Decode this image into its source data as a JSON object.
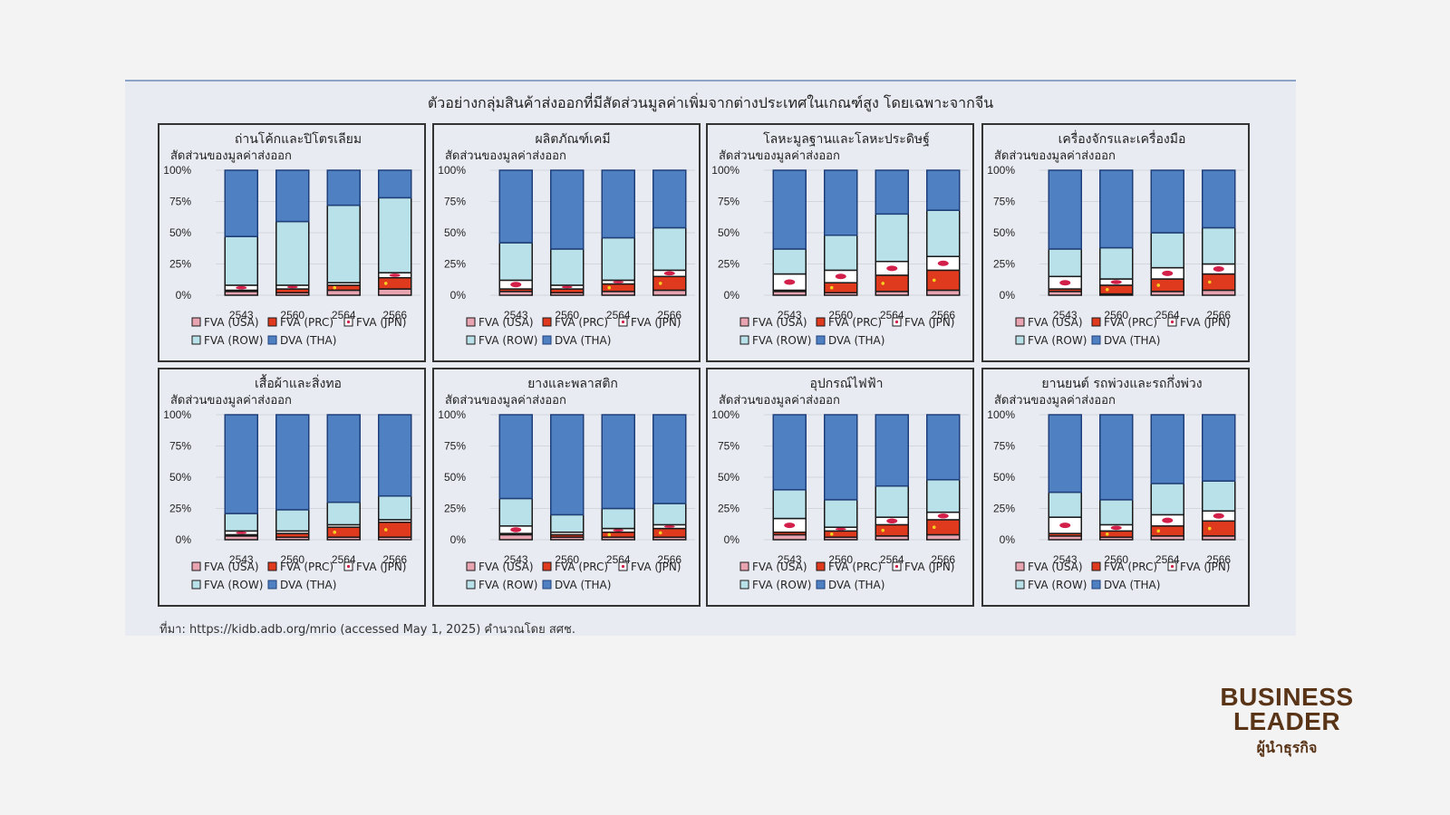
{
  "figure": {
    "title": "ตัวอย่างกลุ่มสินค้าส่งออกที่มีสัดส่วนมูลค่าเพิ่มจากต่างประเทศในเกณฑ์สูง โดยเฉพาะจากจีน",
    "source": "ที่มา: https://kidb.adb.org/mrio (accessed May 1, 2025) คำนวณโดย สศช."
  },
  "logo": {
    "line1": "BUSINESS",
    "line2": "LEADER",
    "line3": "ผู้นำธุรกิจ"
  },
  "colors": {
    "FVA (USA)": "#e8a4b0",
    "FVA (PRC)": "#e03a1e",
    "FVA (JPN)": "#ffffff",
    "FVA (ROW)": "#b9e1ea",
    "DVA (THA)": "#4f81c2",
    "jpn_dot": "#d2204a",
    "outline": "#1a1a1a",
    "dva_outline": "#1f3f7a",
    "grid": "#d4d6de"
  },
  "chart_data": [
    {
      "type": "bar",
      "stacked": true,
      "title": "ถ่านโค้กและปิโตรเลียม",
      "ylabel": "สัดส่วนของมูลค่าส่งออก",
      "xlabel": "",
      "categories": [
        "2543",
        "2560",
        "2564",
        "2566"
      ],
      "yticks": [
        "0%",
        "25%",
        "50%",
        "75%",
        "100%"
      ],
      "ylim": [
        0,
        100
      ],
      "grid": true,
      "legend": "bottom",
      "series": [
        {
          "name": "FVA (USA)",
          "values": [
            3,
            2,
            4,
            5
          ]
        },
        {
          "name": "FVA (PRC)",
          "values": [
            1,
            3,
            4,
            9
          ]
        },
        {
          "name": "FVA (JPN)",
          "values": [
            4,
            3,
            2,
            4
          ]
        },
        {
          "name": "FVA (ROW)",
          "values": [
            39,
            51,
            62,
            60
          ]
        },
        {
          "name": "DVA (THA)",
          "values": [
            53,
            41,
            28,
            22
          ]
        }
      ]
    },
    {
      "type": "bar",
      "stacked": true,
      "title": "ผลิตภัณฑ์เคมี",
      "ylabel": "สัดส่วนของมูลค่าส่งออก",
      "xlabel": "",
      "categories": [
        "2543",
        "2560",
        "2564",
        "2566"
      ],
      "yticks": [
        "0%",
        "25%",
        "50%",
        "75%",
        "100%"
      ],
      "ylim": [
        0,
        100
      ],
      "grid": true,
      "legend": "bottom",
      "series": [
        {
          "name": "FVA (USA)",
          "values": [
            3,
            2,
            3,
            4
          ]
        },
        {
          "name": "FVA (PRC)",
          "values": [
            2,
            3,
            6,
            11
          ]
        },
        {
          "name": "FVA (JPN)",
          "values": [
            7,
            3,
            3,
            5
          ]
        },
        {
          "name": "FVA (ROW)",
          "values": [
            30,
            29,
            34,
            34
          ]
        },
        {
          "name": "DVA (THA)",
          "values": [
            58,
            63,
            54,
            46
          ]
        }
      ]
    },
    {
      "type": "bar",
      "stacked": true,
      "title": "โลหะมูลฐานและโลหะประดิษฐ์",
      "ylabel": "สัดส่วนของมูลค่าส่งออก",
      "xlabel": "",
      "categories": [
        "2543",
        "2560",
        "2564",
        "2566"
      ],
      "yticks": [
        "0%",
        "25%",
        "50%",
        "75%",
        "100%"
      ],
      "ylim": [
        0,
        100
      ],
      "grid": true,
      "legend": "bottom",
      "series": [
        {
          "name": "FVA (USA)",
          "values": [
            3,
            2,
            3,
            4
          ]
        },
        {
          "name": "FVA (PRC)",
          "values": [
            1,
            8,
            13,
            16
          ]
        },
        {
          "name": "FVA (JPN)",
          "values": [
            13,
            10,
            11,
            11
          ]
        },
        {
          "name": "FVA (ROW)",
          "values": [
            20,
            28,
            38,
            37
          ]
        },
        {
          "name": "DVA (THA)",
          "values": [
            63,
            52,
            35,
            32
          ]
        }
      ]
    },
    {
      "type": "bar",
      "stacked": true,
      "title": "เครื่องจักรและเครื่องมือ",
      "ylabel": "สัดส่วนของมูลค่าส่งออก",
      "xlabel": "",
      "categories": [
        "2543",
        "2560",
        "2564",
        "2566"
      ],
      "yticks": [
        "0%",
        "25%",
        "50%",
        "75%",
        "100%"
      ],
      "ylim": [
        0,
        100
      ],
      "grid": true,
      "legend": "bottom",
      "series": [
        {
          "name": "FVA (USA)",
          "values": [
            3,
            1,
            3,
            4
          ]
        },
        {
          "name": "FVA (PRC)",
          "values": [
            2,
            7,
            10,
            13
          ]
        },
        {
          "name": "FVA (JPN)",
          "values": [
            10,
            5,
            9,
            8
          ]
        },
        {
          "name": "FVA (ROW)",
          "values": [
            22,
            25,
            28,
            29
          ]
        },
        {
          "name": "DVA (THA)",
          "values": [
            63,
            62,
            50,
            46
          ]
        }
      ]
    },
    {
      "type": "bar",
      "stacked": true,
      "title": "เสื้อผ้าและสิ่งทอ",
      "ylabel": "สัดส่วนของมูลค่าส่งออก",
      "xlabel": "",
      "categories": [
        "2543",
        "2560",
        "2564",
        "2566"
      ],
      "yticks": [
        "0%",
        "25%",
        "50%",
        "75%",
        "100%"
      ],
      "ylim": [
        0,
        100
      ],
      "grid": true,
      "legend": "bottom",
      "series": [
        {
          "name": "FVA (USA)",
          "values": [
            3,
            2,
            2,
            2
          ]
        },
        {
          "name": "FVA (PRC)",
          "values": [
            1,
            3,
            8,
            12
          ]
        },
        {
          "name": "FVA (JPN)",
          "values": [
            3,
            2,
            2,
            2
          ]
        },
        {
          "name": "FVA (ROW)",
          "values": [
            14,
            17,
            18,
            19
          ]
        },
        {
          "name": "DVA (THA)",
          "values": [
            79,
            76,
            70,
            65
          ]
        }
      ]
    },
    {
      "type": "bar",
      "stacked": true,
      "title": "ยางและพลาสติก",
      "ylabel": "สัดส่วนของมูลค่าส่งออก",
      "xlabel": "",
      "categories": [
        "2543",
        "2560",
        "2564",
        "2566"
      ],
      "yticks": [
        "0%",
        "25%",
        "50%",
        "75%",
        "100%"
      ],
      "ylim": [
        0,
        100
      ],
      "grid": true,
      "legend": "bottom",
      "series": [
        {
          "name": "FVA (USA)",
          "values": [
            4,
            2,
            2,
            2
          ]
        },
        {
          "name": "FVA (PRC)",
          "values": [
            1,
            2,
            4,
            7
          ]
        },
        {
          "name": "FVA (JPN)",
          "values": [
            6,
            2,
            3,
            3
          ]
        },
        {
          "name": "FVA (ROW)",
          "values": [
            22,
            14,
            16,
            17
          ]
        },
        {
          "name": "DVA (THA)",
          "values": [
            67,
            80,
            75,
            71
          ]
        }
      ]
    },
    {
      "type": "bar",
      "stacked": true,
      "title": "อุปกรณ์ไฟฟ้า",
      "ylabel": "สัดส่วนของมูลค่าส่งออก",
      "xlabel": "",
      "categories": [
        "2543",
        "2560",
        "2564",
        "2566"
      ],
      "yticks": [
        "0%",
        "25%",
        "50%",
        "75%",
        "100%"
      ],
      "ylim": [
        0,
        100
      ],
      "grid": true,
      "legend": "bottom",
      "series": [
        {
          "name": "FVA (USA)",
          "values": [
            4,
            2,
            3,
            4
          ]
        },
        {
          "name": "FVA (PRC)",
          "values": [
            2,
            5,
            9,
            12
          ]
        },
        {
          "name": "FVA (JPN)",
          "values": [
            11,
            3,
            6,
            6
          ]
        },
        {
          "name": "FVA (ROW)",
          "values": [
            23,
            22,
            25,
            26
          ]
        },
        {
          "name": "DVA (THA)",
          "values": [
            60,
            68,
            57,
            52
          ]
        }
      ]
    },
    {
      "type": "bar",
      "stacked": true,
      "title": "ยานยนต์ รถพ่วงและรถกึ่งพ่วง",
      "ylabel": "สัดส่วนของมูลค่าส่งออก",
      "xlabel": "",
      "categories": [
        "2543",
        "2560",
        "2564",
        "2566"
      ],
      "yticks": [
        "0%",
        "25%",
        "50%",
        "75%",
        "100%"
      ],
      "ylim": [
        0,
        100
      ],
      "grid": true,
      "legend": "bottom",
      "series": [
        {
          "name": "FVA (USA)",
          "values": [
            3,
            2,
            3,
            3
          ]
        },
        {
          "name": "FVA (PRC)",
          "values": [
            2,
            5,
            8,
            12
          ]
        },
        {
          "name": "FVA (JPN)",
          "values": [
            13,
            5,
            9,
            8
          ]
        },
        {
          "name": "FVA (ROW)",
          "values": [
            20,
            20,
            25,
            24
          ]
        },
        {
          "name": "DVA (THA)",
          "values": [
            62,
            68,
            55,
            53
          ]
        }
      ]
    }
  ]
}
